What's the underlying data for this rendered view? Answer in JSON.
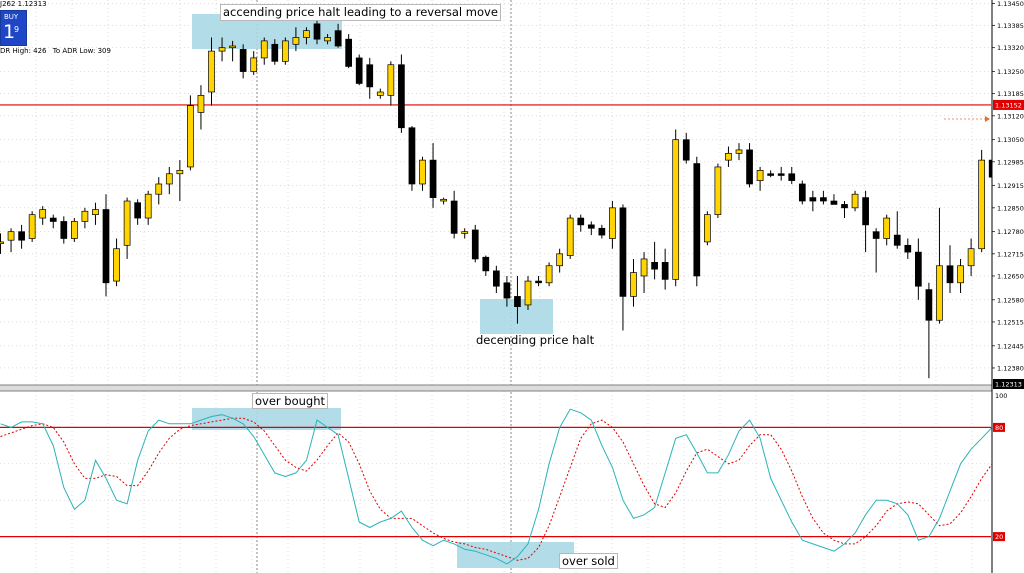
{
  "header": {
    "info_text": "J262 1.12313",
    "buy_button": {
      "label": "BUY",
      "big": "1",
      "small": "9"
    },
    "adr_high_text": "DR High: 426",
    "adr_low_text": "To ADR Low: 309"
  },
  "colors": {
    "bull": "#ffd400",
    "bear": "#000000",
    "candle_border": "#000000",
    "hline": "#e00000",
    "highlight": "#a9d8e6",
    "stoch_main": "#2ab3b8",
    "stoch_signal": "#e00000",
    "grid": "#c8c8c8"
  },
  "annotations": {
    "ascending": "accending price halt leading to a reversal move",
    "descending": "decending price halt",
    "overbought": "over bought",
    "oversold": "over sold"
  },
  "chart_data": [
    {
      "type": "candlestick",
      "ylim": [
        1.1233,
        1.1346
      ],
      "y_ticks": [
        "1.13450",
        "1.13385",
        "1.13320",
        "1.13250",
        "1.13185",
        "1.13120",
        "1.13050",
        "1.12985",
        "1.12915",
        "1.12850",
        "1.12780",
        "1.12715",
        "1.12650",
        "1.12580",
        "1.12515",
        "1.12445",
        "1.12380"
      ],
      "reference_line": {
        "value": 1.13152,
        "label": "1.13152"
      },
      "current_price": {
        "value": 1.12313,
        "label": "1.12313"
      },
      "grid": true,
      "candles": [
        {
          "o": 1.12745,
          "h": 1.12775,
          "l": 1.12715,
          "c": 1.1275
        },
        {
          "o": 1.12755,
          "h": 1.1279,
          "l": 1.1272,
          "c": 1.1278
        },
        {
          "o": 1.1278,
          "h": 1.128,
          "l": 1.1273,
          "c": 1.12755
        },
        {
          "o": 1.1276,
          "h": 1.1284,
          "l": 1.1275,
          "c": 1.1283
        },
        {
          "o": 1.1282,
          "h": 1.12855,
          "l": 1.128,
          "c": 1.12845
        },
        {
          "o": 1.1282,
          "h": 1.1283,
          "l": 1.1279,
          "c": 1.1281
        },
        {
          "o": 1.1281,
          "h": 1.12825,
          "l": 1.12745,
          "c": 1.1276
        },
        {
          "o": 1.1276,
          "h": 1.1282,
          "l": 1.1275,
          "c": 1.1281
        },
        {
          "o": 1.1281,
          "h": 1.1285,
          "l": 1.1279,
          "c": 1.1284
        },
        {
          "o": 1.1283,
          "h": 1.12865,
          "l": 1.128,
          "c": 1.12845
        },
        {
          "o": 1.12845,
          "h": 1.1289,
          "l": 1.1259,
          "c": 1.1263
        },
        {
          "o": 1.12635,
          "h": 1.1276,
          "l": 1.1262,
          "c": 1.1273
        },
        {
          "o": 1.1274,
          "h": 1.1288,
          "l": 1.127,
          "c": 1.1287
        },
        {
          "o": 1.12865,
          "h": 1.12875,
          "l": 1.128,
          "c": 1.1282
        },
        {
          "o": 1.1282,
          "h": 1.129,
          "l": 1.128,
          "c": 1.1289
        },
        {
          "o": 1.1289,
          "h": 1.1294,
          "l": 1.1286,
          "c": 1.1292
        },
        {
          "o": 1.1292,
          "h": 1.1297,
          "l": 1.1289,
          "c": 1.1295
        },
        {
          "o": 1.1295,
          "h": 1.1299,
          "l": 1.1287,
          "c": 1.1296
        },
        {
          "o": 1.1297,
          "h": 1.1318,
          "l": 1.1296,
          "c": 1.1315
        },
        {
          "o": 1.1313,
          "h": 1.1321,
          "l": 1.1308,
          "c": 1.1318
        },
        {
          "o": 1.1319,
          "h": 1.1335,
          "l": 1.1315,
          "c": 1.1331
        },
        {
          "o": 1.1331,
          "h": 1.1335,
          "l": 1.1328,
          "c": 1.1332
        },
        {
          "o": 1.1332,
          "h": 1.1334,
          "l": 1.1328,
          "c": 1.13325
        },
        {
          "o": 1.13315,
          "h": 1.1333,
          "l": 1.1323,
          "c": 1.1325
        },
        {
          "o": 1.1325,
          "h": 1.1331,
          "l": 1.1324,
          "c": 1.1329
        },
        {
          "o": 1.1329,
          "h": 1.1335,
          "l": 1.1327,
          "c": 1.1334
        },
        {
          "o": 1.1333,
          "h": 1.13345,
          "l": 1.1327,
          "c": 1.1328
        },
        {
          "o": 1.1328,
          "h": 1.1335,
          "l": 1.1327,
          "c": 1.1334
        },
        {
          "o": 1.1333,
          "h": 1.1338,
          "l": 1.1331,
          "c": 1.1335
        },
        {
          "o": 1.1335,
          "h": 1.1338,
          "l": 1.1333,
          "c": 1.1337
        },
        {
          "o": 1.1339,
          "h": 1.1342,
          "l": 1.1333,
          "c": 1.13345
        },
        {
          "o": 1.1334,
          "h": 1.1336,
          "l": 1.1333,
          "c": 1.1335
        },
        {
          "o": 1.1337,
          "h": 1.1339,
          "l": 1.1332,
          "c": 1.13325
        },
        {
          "o": 1.13345,
          "h": 1.1336,
          "l": 1.1326,
          "c": 1.13265
        },
        {
          "o": 1.1329,
          "h": 1.133,
          "l": 1.1321,
          "c": 1.13215
        },
        {
          "o": 1.1327,
          "h": 1.1329,
          "l": 1.1317,
          "c": 1.13205
        },
        {
          "o": 1.1318,
          "h": 1.132,
          "l": 1.1317,
          "c": 1.1319
        },
        {
          "o": 1.1318,
          "h": 1.1328,
          "l": 1.1315,
          "c": 1.1327
        },
        {
          "o": 1.1327,
          "h": 1.133,
          "l": 1.1307,
          "c": 1.13085
        },
        {
          "o": 1.13085,
          "h": 1.1309,
          "l": 1.129,
          "c": 1.1292
        },
        {
          "o": 1.1292,
          "h": 1.13,
          "l": 1.129,
          "c": 1.1299
        },
        {
          "o": 1.1299,
          "h": 1.1304,
          "l": 1.1285,
          "c": 1.1288
        },
        {
          "o": 1.1287,
          "h": 1.1288,
          "l": 1.1286,
          "c": 1.12875
        },
        {
          "o": 1.1287,
          "h": 1.129,
          "l": 1.1276,
          "c": 1.12775
        },
        {
          "o": 1.12775,
          "h": 1.1279,
          "l": 1.1276,
          "c": 1.1278
        },
        {
          "o": 1.12785,
          "h": 1.128,
          "l": 1.1269,
          "c": 1.127
        },
        {
          "o": 1.12705,
          "h": 1.1271,
          "l": 1.1265,
          "c": 1.12665
        },
        {
          "o": 1.12665,
          "h": 1.1268,
          "l": 1.126,
          "c": 1.1262
        },
        {
          "o": 1.1263,
          "h": 1.1265,
          "l": 1.1256,
          "c": 1.12585
        },
        {
          "o": 1.1259,
          "h": 1.1265,
          "l": 1.1251,
          "c": 1.1256
        },
        {
          "o": 1.12565,
          "h": 1.1265,
          "l": 1.1255,
          "c": 1.12635
        },
        {
          "o": 1.12635,
          "h": 1.1265,
          "l": 1.1262,
          "c": 1.1263
        },
        {
          "o": 1.1263,
          "h": 1.1269,
          "l": 1.1262,
          "c": 1.1268
        },
        {
          "o": 1.1268,
          "h": 1.1273,
          "l": 1.1266,
          "c": 1.12715
        },
        {
          "o": 1.1271,
          "h": 1.1283,
          "l": 1.127,
          "c": 1.1282
        },
        {
          "o": 1.1282,
          "h": 1.1283,
          "l": 1.1278,
          "c": 1.128
        },
        {
          "o": 1.128,
          "h": 1.1281,
          "l": 1.1277,
          "c": 1.1279
        },
        {
          "o": 1.1279,
          "h": 1.128,
          "l": 1.1276,
          "c": 1.1277
        },
        {
          "o": 1.1276,
          "h": 1.1287,
          "l": 1.1273,
          "c": 1.1285
        },
        {
          "o": 1.1285,
          "h": 1.1286,
          "l": 1.1249,
          "c": 1.1259
        },
        {
          "o": 1.1259,
          "h": 1.127,
          "l": 1.1256,
          "c": 1.1266
        },
        {
          "o": 1.1265,
          "h": 1.1272,
          "l": 1.126,
          "c": 1.127
        },
        {
          "o": 1.1269,
          "h": 1.1275,
          "l": 1.1264,
          "c": 1.1267
        },
        {
          "o": 1.1269,
          "h": 1.1273,
          "l": 1.1261,
          "c": 1.1264
        },
        {
          "o": 1.1264,
          "h": 1.1308,
          "l": 1.1262,
          "c": 1.1305
        },
        {
          "o": 1.1305,
          "h": 1.1307,
          "l": 1.1298,
          "c": 1.1299
        },
        {
          "o": 1.1298,
          "h": 1.13,
          "l": 1.1262,
          "c": 1.1265
        },
        {
          "o": 1.1275,
          "h": 1.1284,
          "l": 1.1274,
          "c": 1.1283
        },
        {
          "o": 1.1283,
          "h": 1.1298,
          "l": 1.1282,
          "c": 1.1297
        },
        {
          "o": 1.1299,
          "h": 1.1303,
          "l": 1.1297,
          "c": 1.1301
        },
        {
          "o": 1.1301,
          "h": 1.1304,
          "l": 1.1299,
          "c": 1.1302
        },
        {
          "o": 1.1302,
          "h": 1.1304,
          "l": 1.1291,
          "c": 1.1292
        },
        {
          "o": 1.1293,
          "h": 1.1297,
          "l": 1.129,
          "c": 1.1296
        },
        {
          "o": 1.1295,
          "h": 1.1296,
          "l": 1.1294,
          "c": 1.12945
        },
        {
          "o": 1.1295,
          "h": 1.1297,
          "l": 1.1293,
          "c": 1.12945
        },
        {
          "o": 1.1295,
          "h": 1.1297,
          "l": 1.1292,
          "c": 1.1293
        },
        {
          "o": 1.1292,
          "h": 1.1293,
          "l": 1.1286,
          "c": 1.1287
        },
        {
          "o": 1.1288,
          "h": 1.129,
          "l": 1.1284,
          "c": 1.1287
        },
        {
          "o": 1.1288,
          "h": 1.129,
          "l": 1.1286,
          "c": 1.1287
        },
        {
          "o": 1.1287,
          "h": 1.1289,
          "l": 1.1286,
          "c": 1.1286
        },
        {
          "o": 1.1286,
          "h": 1.1287,
          "l": 1.1282,
          "c": 1.1285
        },
        {
          "o": 1.1285,
          "h": 1.129,
          "l": 1.1284,
          "c": 1.1289
        },
        {
          "o": 1.1288,
          "h": 1.129,
          "l": 1.1272,
          "c": 1.128
        },
        {
          "o": 1.1278,
          "h": 1.1279,
          "l": 1.1266,
          "c": 1.1276
        },
        {
          "o": 1.1276,
          "h": 1.1283,
          "l": 1.1274,
          "c": 1.1282
        },
        {
          "o": 1.1277,
          "h": 1.1284,
          "l": 1.1273,
          "c": 1.1274
        },
        {
          "o": 1.1274,
          "h": 1.1276,
          "l": 1.127,
          "c": 1.1272
        },
        {
          "o": 1.1272,
          "h": 1.1276,
          "l": 1.1258,
          "c": 1.1262
        },
        {
          "o": 1.1261,
          "h": 1.1263,
          "l": 1.1235,
          "c": 1.1252
        },
        {
          "o": 1.1252,
          "h": 1.1285,
          "l": 1.1251,
          "c": 1.1268
        },
        {
          "o": 1.1268,
          "h": 1.1274,
          "l": 1.126,
          "c": 1.1263
        },
        {
          "o": 1.1263,
          "h": 1.127,
          "l": 1.126,
          "c": 1.1268
        },
        {
          "o": 1.1268,
          "h": 1.1276,
          "l": 1.1265,
          "c": 1.1273
        },
        {
          "o": 1.1273,
          "h": 1.1302,
          "l": 1.1272,
          "c": 1.1299
        },
        {
          "o": 1.1299,
          "h": 1.1304,
          "l": 1.1294,
          "c": 1.1294
        }
      ]
    },
    {
      "type": "line",
      "indicator": "stochastic",
      "ylim": [
        0,
        100
      ],
      "levels": [
        80,
        20
      ],
      "level_labels": [
        "80",
        "20"
      ],
      "top_label": "100",
      "series": [
        {
          "values": [
            82,
            80,
            83,
            83,
            82,
            70,
            47,
            35,
            40,
            62,
            52,
            40,
            38,
            62,
            78,
            84,
            82,
            82,
            82,
            84,
            86,
            87,
            85,
            82,
            75,
            65,
            55,
            53,
            55,
            62,
            84,
            80,
            76,
            52,
            28,
            25,
            28,
            30,
            34,
            25,
            18,
            15,
            18,
            16,
            13,
            12,
            10,
            8,
            5,
            9,
            16,
            35,
            60,
            80,
            90,
            88,
            84,
            70,
            58,
            40,
            30,
            32,
            36,
            55,
            74,
            76,
            66,
            55,
            55,
            65,
            78,
            84,
            74,
            52,
            40,
            28,
            18,
            16,
            14,
            12,
            16,
            22,
            32,
            40,
            40,
            38,
            32,
            18,
            20,
            30,
            45,
            60,
            68,
            74,
            80
          ]
        },
        {
          "values": [
            75,
            77,
            79,
            81,
            82,
            80,
            72,
            60,
            52,
            52,
            54,
            53,
            48,
            48,
            56,
            66,
            74,
            79,
            81,
            82,
            83,
            84,
            85,
            85,
            83,
            78,
            70,
            62,
            58,
            56,
            62,
            70,
            77,
            72,
            60,
            45,
            35,
            30,
            30,
            30,
            26,
            22,
            19,
            17,
            16,
            14,
            13,
            11,
            9,
            7,
            8,
            14,
            26,
            42,
            58,
            74,
            82,
            84,
            80,
            72,
            60,
            48,
            38,
            36,
            44,
            56,
            66,
            68,
            64,
            60,
            62,
            70,
            76,
            76,
            68,
            56,
            42,
            30,
            22,
            18,
            16,
            16,
            20,
            26,
            34,
            38,
            39,
            38,
            32,
            26,
            27,
            33,
            42,
            52,
            60
          ]
        }
      ]
    }
  ]
}
